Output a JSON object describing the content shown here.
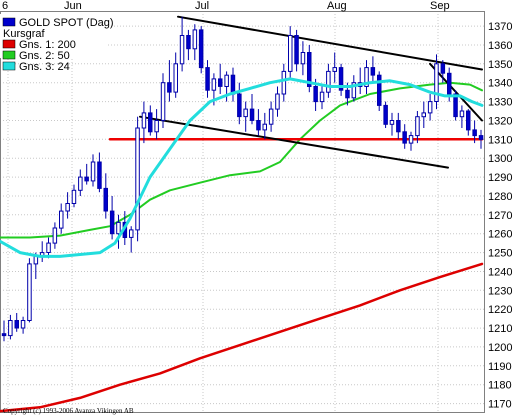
{
  "chart_data": {
    "type": "candlestick",
    "x_ticks": [
      "6",
      "Jun",
      "Jul",
      "Aug",
      "Sep"
    ],
    "y_ticks": [
      1170,
      1180,
      1190,
      1200,
      1210,
      1220,
      1230,
      1240,
      1250,
      1260,
      1270,
      1280,
      1290,
      1300,
      1310,
      1320,
      1330,
      1340,
      1350,
      1360,
      1370
    ],
    "ylim": [
      1165,
      1378
    ],
    "grid": true,
    "legend_position": "top-left",
    "copyright": "Copyright (c) 1993-2006 Avanza Vikingen AB",
    "legend": [
      {
        "name": "GOLD SPOT (Dag)",
        "color": "#0000cc"
      },
      {
        "name": "Kursgraf",
        "color": null
      },
      {
        "name": "Gns. 1: 200",
        "color": "#dd0000"
      },
      {
        "name": "Gns. 2: 50",
        "color": "#22cc22"
      },
      {
        "name": "Gns. 3: 24",
        "color": "#22dddd"
      }
    ],
    "candles": [
      [
        1207,
        1214,
        1203,
        1206
      ],
      [
        1206,
        1217,
        1204,
        1214
      ],
      [
        1214,
        1218,
        1208,
        1210
      ],
      [
        1210,
        1216,
        1207,
        1214
      ],
      [
        1214,
        1247,
        1213,
        1244
      ],
      [
        1244,
        1250,
        1236,
        1248
      ],
      [
        1248,
        1256,
        1245,
        1250
      ],
      [
        1250,
        1258,
        1247,
        1255
      ],
      [
        1255,
        1266,
        1252,
        1263
      ],
      [
        1263,
        1276,
        1260,
        1272
      ],
      [
        1272,
        1282,
        1268,
        1276
      ],
      [
        1276,
        1286,
        1274,
        1283
      ],
      [
        1283,
        1294,
        1280,
        1290
      ],
      [
        1290,
        1297,
        1286,
        1288
      ],
      [
        1288,
        1302,
        1285,
        1298
      ],
      [
        1298,
        1303,
        1282,
        1284
      ],
      [
        1284,
        1292,
        1268,
        1272
      ],
      [
        1272,
        1280,
        1257,
        1260
      ],
      [
        1260,
        1270,
        1252,
        1266
      ],
      [
        1266,
        1272,
        1254,
        1258
      ],
      [
        1258,
        1264,
        1250,
        1262
      ],
      [
        1262,
        1322,
        1256,
        1316
      ],
      [
        1316,
        1330,
        1308,
        1324
      ],
      [
        1324,
        1328,
        1312,
        1314
      ],
      [
        1314,
        1326,
        1310,
        1320
      ],
      [
        1320,
        1345,
        1316,
        1340
      ],
      [
        1340,
        1352,
        1330,
        1335
      ],
      [
        1335,
        1356,
        1332,
        1350
      ],
      [
        1350,
        1375,
        1346,
        1365
      ],
      [
        1365,
        1368,
        1352,
        1358
      ],
      [
        1358,
        1371,
        1352,
        1368
      ],
      [
        1368,
        1370,
        1345,
        1348
      ],
      [
        1348,
        1352,
        1332,
        1336
      ],
      [
        1336,
        1345,
        1328,
        1342
      ],
      [
        1342,
        1350,
        1334,
        1338
      ],
      [
        1338,
        1346,
        1330,
        1344
      ],
      [
        1344,
        1348,
        1330,
        1334
      ],
      [
        1334,
        1340,
        1318,
        1322
      ],
      [
        1322,
        1330,
        1314,
        1326
      ],
      [
        1326,
        1334,
        1318,
        1320
      ],
      [
        1320,
        1326,
        1312,
        1315
      ],
      [
        1315,
        1324,
        1310,
        1318
      ],
      [
        1318,
        1330,
        1314,
        1326
      ],
      [
        1326,
        1338,
        1322,
        1334
      ],
      [
        1334,
        1350,
        1330,
        1346
      ],
      [
        1346,
        1370,
        1342,
        1365
      ],
      [
        1365,
        1368,
        1346,
        1350
      ],
      [
        1350,
        1362,
        1344,
        1356
      ],
      [
        1356,
        1360,
        1335,
        1338
      ],
      [
        1338,
        1342,
        1325,
        1330
      ],
      [
        1330,
        1338,
        1326,
        1335
      ],
      [
        1335,
        1350,
        1332,
        1346
      ],
      [
        1346,
        1356,
        1340,
        1348
      ],
      [
        1348,
        1350,
        1333,
        1336
      ],
      [
        1336,
        1340,
        1328,
        1332
      ],
      [
        1332,
        1344,
        1330,
        1340
      ],
      [
        1340,
        1348,
        1334,
        1338
      ],
      [
        1338,
        1352,
        1334,
        1348
      ],
      [
        1348,
        1354,
        1340,
        1344
      ],
      [
        1344,
        1346,
        1325,
        1328
      ],
      [
        1328,
        1330,
        1316,
        1318
      ],
      [
        1318,
        1324,
        1312,
        1320
      ],
      [
        1320,
        1324,
        1310,
        1314
      ],
      [
        1314,
        1318,
        1305,
        1308
      ],
      [
        1308,
        1314,
        1304,
        1312
      ],
      [
        1312,
        1325,
        1308,
        1322
      ],
      [
        1322,
        1330,
        1316,
        1324
      ],
      [
        1324,
        1334,
        1320,
        1330
      ],
      [
        1330,
        1355,
        1326,
        1350
      ],
      [
        1350,
        1352,
        1340,
        1345
      ],
      [
        1345,
        1348,
        1330,
        1334
      ],
      [
        1334,
        1336,
        1320,
        1322
      ],
      [
        1322,
        1328,
        1316,
        1325
      ],
      [
        1325,
        1326,
        1312,
        1315
      ],
      [
        1315,
        1320,
        1308,
        1312
      ],
      [
        1312,
        1315,
        1305,
        1310
      ]
    ],
    "ma_200": [
      [
        0,
        1166
      ],
      [
        40,
        1168
      ],
      [
        80,
        1173
      ],
      [
        120,
        1180
      ],
      [
        160,
        1186
      ],
      [
        200,
        1194
      ],
      [
        240,
        1201
      ],
      [
        280,
        1208
      ],
      [
        320,
        1215
      ],
      [
        360,
        1222
      ],
      [
        400,
        1230
      ],
      [
        440,
        1237
      ],
      [
        482,
        1244
      ]
    ],
    "ma_50": [
      [
        0,
        1258
      ],
      [
        30,
        1258
      ],
      [
        60,
        1259
      ],
      [
        90,
        1262
      ],
      [
        110,
        1264
      ],
      [
        130,
        1270
      ],
      [
        150,
        1278
      ],
      [
        170,
        1283
      ],
      [
        200,
        1287
      ],
      [
        230,
        1291
      ],
      [
        260,
        1293
      ],
      [
        280,
        1298
      ],
      [
        300,
        1310
      ],
      [
        320,
        1320
      ],
      [
        340,
        1328
      ],
      [
        370,
        1334
      ],
      [
        400,
        1337
      ],
      [
        430,
        1339
      ],
      [
        450,
        1340
      ],
      [
        470,
        1339
      ],
      [
        482,
        1336
      ]
    ],
    "ma_24": [
      [
        0,
        1256
      ],
      [
        20,
        1250
      ],
      [
        40,
        1248
      ],
      [
        60,
        1248
      ],
      [
        80,
        1249
      ],
      [
        100,
        1250
      ],
      [
        115,
        1255
      ],
      [
        130,
        1268
      ],
      [
        150,
        1290
      ],
      [
        170,
        1305
      ],
      [
        190,
        1320
      ],
      [
        210,
        1330
      ],
      [
        230,
        1334
      ],
      [
        250,
        1337
      ],
      [
        270,
        1340
      ],
      [
        290,
        1342
      ],
      [
        310,
        1340
      ],
      [
        330,
        1338
      ],
      [
        350,
        1338
      ],
      [
        370,
        1340
      ],
      [
        390,
        1341
      ],
      [
        410,
        1339
      ],
      [
        430,
        1335
      ],
      [
        445,
        1333
      ],
      [
        460,
        1333
      ],
      [
        472,
        1330
      ],
      [
        482,
        1328
      ]
    ],
    "support_line": [
      [
        110,
        1310
      ],
      [
        482,
        1310
      ]
    ],
    "trend_lines": [
      [
        [
          178,
          1375
        ],
        [
          482,
          1347
        ]
      ],
      [
        [
          140,
          1322
        ],
        [
          448,
          1295
        ]
      ],
      [
        [
          430,
          1350
        ],
        [
          482,
          1320
        ]
      ]
    ]
  }
}
